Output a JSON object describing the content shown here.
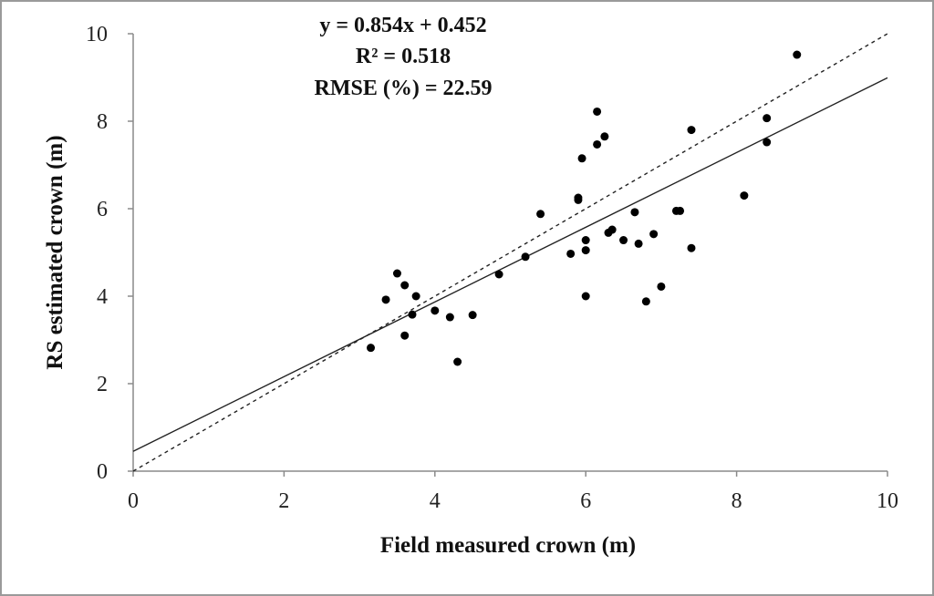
{
  "chart_data": {
    "type": "scatter",
    "xlabel": "Field measured crown (m)",
    "ylabel": "RS estimated crown (m)",
    "xlim": [
      0,
      10
    ],
    "ylim": [
      0,
      10
    ],
    "x_ticks": [
      "0",
      "2",
      "4",
      "6",
      "8",
      "10"
    ],
    "y_ticks": [
      "0",
      "2",
      "4",
      "6",
      "8",
      "10"
    ],
    "grid": false,
    "annotations": [
      "y = 0.854x + 0.452",
      "R² = 0.518",
      "RMSE (%) =  22.59"
    ],
    "regression": {
      "slope": 0.854,
      "intercept": 0.452,
      "style": "solid"
    },
    "reference_line": {
      "slope": 1,
      "intercept": 0,
      "style": "dashed"
    },
    "points": [
      {
        "x": 3.15,
        "y": 2.82
      },
      {
        "x": 3.35,
        "y": 3.92
      },
      {
        "x": 3.5,
        "y": 4.52
      },
      {
        "x": 3.6,
        "y": 4.25
      },
      {
        "x": 3.6,
        "y": 3.1
      },
      {
        "x": 3.7,
        "y": 3.58
      },
      {
        "x": 3.75,
        "y": 4.0
      },
      {
        "x": 4.0,
        "y": 3.67
      },
      {
        "x": 4.2,
        "y": 3.52
      },
      {
        "x": 4.3,
        "y": 2.5
      },
      {
        "x": 4.5,
        "y": 3.57
      },
      {
        "x": 4.85,
        "y": 4.5
      },
      {
        "x": 5.2,
        "y": 4.9
      },
      {
        "x": 5.4,
        "y": 5.88
      },
      {
        "x": 5.8,
        "y": 4.97
      },
      {
        "x": 5.9,
        "y": 6.2
      },
      {
        "x": 5.9,
        "y": 6.25
      },
      {
        "x": 5.95,
        "y": 7.15
      },
      {
        "x": 6.0,
        "y": 5.28
      },
      {
        "x": 6.0,
        "y": 5.05
      },
      {
        "x": 6.0,
        "y": 4.0
      },
      {
        "x": 6.15,
        "y": 8.22
      },
      {
        "x": 6.15,
        "y": 7.47
      },
      {
        "x": 6.25,
        "y": 7.65
      },
      {
        "x": 6.3,
        "y": 5.45
      },
      {
        "x": 6.35,
        "y": 5.52
      },
      {
        "x": 6.5,
        "y": 5.28
      },
      {
        "x": 6.65,
        "y": 5.92
      },
      {
        "x": 6.7,
        "y": 5.2
      },
      {
        "x": 6.8,
        "y": 3.88
      },
      {
        "x": 6.9,
        "y": 5.42
      },
      {
        "x": 7.0,
        "y": 4.22
      },
      {
        "x": 7.2,
        "y": 5.95
      },
      {
        "x": 7.25,
        "y": 5.95
      },
      {
        "x": 7.4,
        "y": 7.8
      },
      {
        "x": 7.4,
        "y": 5.1
      },
      {
        "x": 8.1,
        "y": 6.3
      },
      {
        "x": 8.4,
        "y": 8.07
      },
      {
        "x": 8.4,
        "y": 7.52
      },
      {
        "x": 8.8,
        "y": 9.52
      }
    ]
  }
}
